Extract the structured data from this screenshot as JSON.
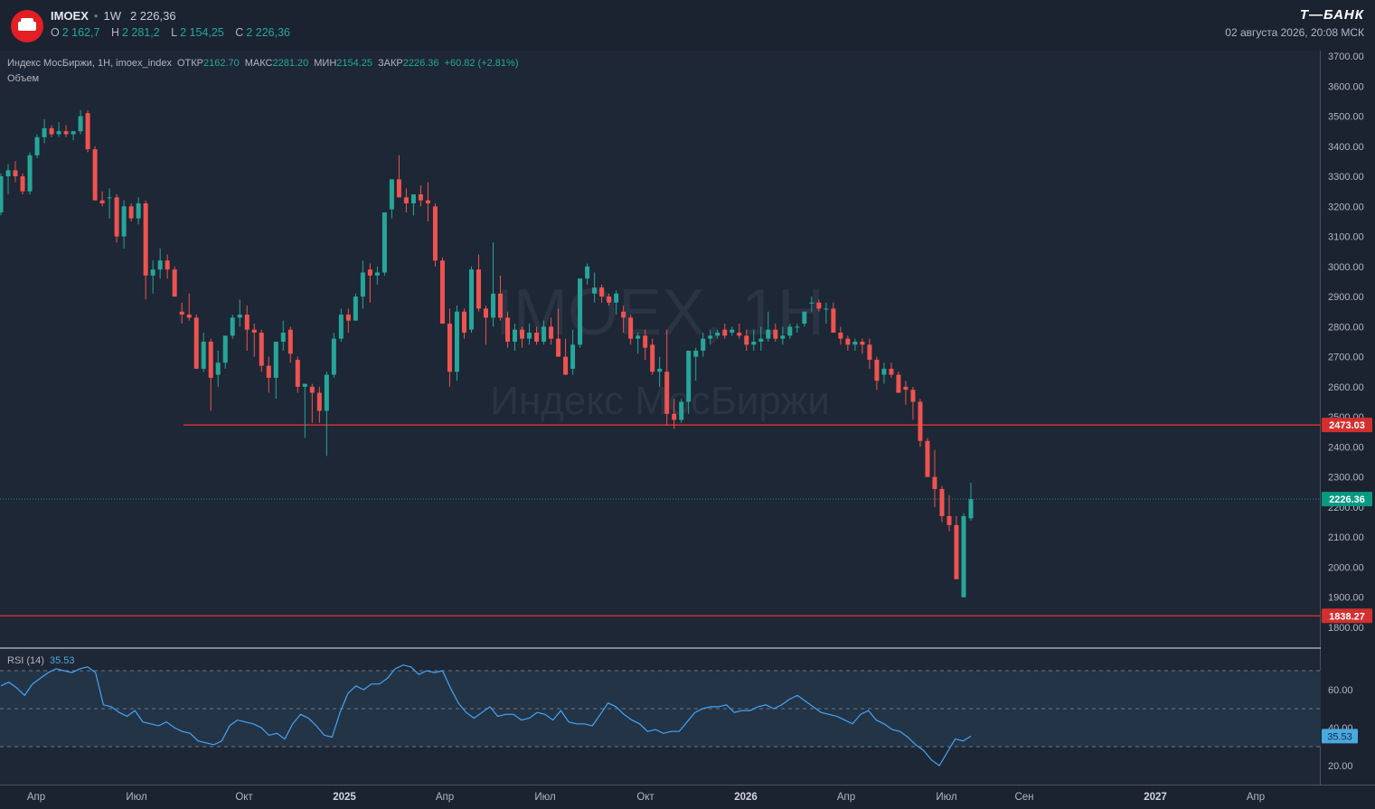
{
  "header": {
    "ticker": "IMOEX",
    "timeframe": "1W",
    "last_price": "2 226,36",
    "ohlc": [
      {
        "key": "O",
        "value": "2 162,7"
      },
      {
        "key": "H",
        "value": "2 281,2"
      },
      {
        "key": "L",
        "value": "2 154,25"
      },
      {
        "key": "C",
        "value": "2 226,36"
      }
    ],
    "brand": "Т—БАНК",
    "datetime": "02 августа 2026, 20:08 МСК"
  },
  "legend": {
    "symbol": "Индекс МосБиржи, 1Н, imoex_index",
    "open_label": "ОТКР",
    "open": "2162.70",
    "high_label": "МАКС",
    "high": "2281.20",
    "low_label": "МИН",
    "low": "2154.25",
    "close_label": "ЗАКР",
    "close": "2226.36",
    "change": "+60.82 (+2.81%)",
    "volume_label": "Объем"
  },
  "watermark": {
    "line1": "IMOEX, 1Н",
    "line2": "Индекс МосБиржи"
  },
  "colors": {
    "up": "#26a69a",
    "down": "#ef5350",
    "level_line": "#d32f2f",
    "current_price": "#089981",
    "rsi_line": "#42a5f5"
  },
  "chart_data": {
    "type": "candlestick",
    "price_axis_ticks": [
      "3700.00",
      "3600.00",
      "3500.00",
      "3400.00",
      "3300.00",
      "3200.00",
      "3100.00",
      "3000.00",
      "2900.00",
      "2800.00",
      "2700.00",
      "2600.00",
      "2500.00",
      "2400.00",
      "2300.00",
      "2200.00",
      "2100.00",
      "2000.00",
      "1900.00",
      "1800.00"
    ],
    "time_axis_labels": [
      "Апр",
      "Июл",
      "Окт",
      "2025",
      "Апр",
      "Июл",
      "Окт",
      "2026",
      "Апр",
      "Июл",
      "Сен",
      "2027",
      "Апр"
    ],
    "levels": [
      {
        "price": 2473.03,
        "label": "2473.03"
      },
      {
        "price": 1838.27,
        "label": "1838.27"
      }
    ],
    "current_price": {
      "value": 2226.36,
      "label": "2226.36"
    },
    "candles_ohlc": [
      [
        3180,
        3310,
        3170,
        3300
      ],
      [
        3300,
        3340,
        3240,
        3320
      ],
      [
        3320,
        3350,
        3280,
        3300
      ],
      [
        3300,
        3310,
        3240,
        3250
      ],
      [
        3250,
        3380,
        3240,
        3370
      ],
      [
        3370,
        3440,
        3360,
        3430
      ],
      [
        3430,
        3490,
        3410,
        3460
      ],
      [
        3460,
        3470,
        3430,
        3440
      ],
      [
        3440,
        3480,
        3430,
        3450
      ],
      [
        3450,
        3470,
        3430,
        3440
      ],
      [
        3440,
        3450,
        3420,
        3450
      ],
      [
        3450,
        3520,
        3440,
        3500
      ],
      [
        3510,
        3520,
        3380,
        3390
      ],
      [
        3390,
        3400,
        3220,
        3220
      ],
      [
        3220,
        3250,
        3200,
        3210
      ],
      [
        3230,
        3260,
        3160,
        3230
      ],
      [
        3230,
        3240,
        3080,
        3100
      ],
      [
        3100,
        3220,
        3060,
        3200
      ],
      [
        3200,
        3210,
        3150,
        3160
      ],
      [
        3160,
        3230,
        3140,
        3210
      ],
      [
        3210,
        3220,
        2890,
        2970
      ],
      [
        2970,
        3020,
        2910,
        2990
      ],
      [
        2990,
        3060,
        2960,
        3020
      ],
      [
        3020,
        3040,
        2960,
        2990
      ],
      [
        2990,
        3000,
        2900,
        2900
      ],
      [
        2850,
        2880,
        2810,
        2840
      ],
      [
        2840,
        2910,
        2820,
        2830
      ],
      [
        2830,
        2840,
        2660,
        2660
      ],
      [
        2660,
        2780,
        2650,
        2750
      ],
      [
        2750,
        2760,
        2520,
        2630
      ],
      [
        2640,
        2720,
        2600,
        2680
      ],
      [
        2680,
        2770,
        2660,
        2770
      ],
      [
        2770,
        2840,
        2760,
        2830
      ],
      [
        2830,
        2890,
        2800,
        2840
      ],
      [
        2840,
        2870,
        2720,
        2790
      ],
      [
        2790,
        2810,
        2700,
        2780
      ],
      [
        2780,
        2790,
        2650,
        2670
      ],
      [
        2670,
        2700,
        2580,
        2630
      ],
      [
        2630,
        2740,
        2560,
        2750
      ],
      [
        2750,
        2820,
        2720,
        2780
      ],
      [
        2790,
        2800,
        2680,
        2710
      ],
      [
        2690,
        2700,
        2580,
        2600
      ],
      [
        2600,
        2610,
        2430,
        2610
      ],
      [
        2600,
        2610,
        2480,
        2580
      ],
      [
        2580,
        2600,
        2480,
        2520
      ],
      [
        2520,
        2650,
        2370,
        2640
      ],
      [
        2640,
        2780,
        2630,
        2760
      ],
      [
        2760,
        2860,
        2750,
        2840
      ],
      [
        2840,
        2860,
        2780,
        2820
      ],
      [
        2820,
        2910,
        2830,
        2900
      ],
      [
        2900,
        3020,
        2860,
        2980
      ],
      [
        2990,
        3010,
        2880,
        2970
      ],
      [
        2970,
        3000,
        2940,
        2980
      ],
      [
        2980,
        3150,
        2970,
        3180
      ],
      [
        3190,
        3290,
        3160,
        3290
      ],
      [
        3290,
        3370,
        3230,
        3230
      ],
      [
        3230,
        3260,
        3180,
        3210
      ],
      [
        3210,
        3240,
        3170,
        3240
      ],
      [
        3240,
        3270,
        3200,
        3220
      ],
      [
        3220,
        3280,
        3150,
        3210
      ],
      [
        3200,
        3210,
        3000,
        3020
      ],
      [
        3020,
        3030,
        2820,
        2810
      ],
      [
        2810,
        2860,
        2600,
        2650
      ],
      [
        2650,
        2870,
        2620,
        2850
      ],
      [
        2850,
        2860,
        2760,
        2780
      ],
      [
        2790,
        3000,
        2780,
        2990
      ],
      [
        2990,
        3040,
        2850,
        2860
      ],
      [
        2860,
        2870,
        2740,
        2830
      ],
      [
        2830,
        3080,
        2800,
        2910
      ],
      [
        2910,
        2970,
        2820,
        2830
      ],
      [
        2830,
        2850,
        2730,
        2750
      ],
      [
        2750,
        2810,
        2720,
        2790
      ],
      [
        2790,
        2800,
        2730,
        2760
      ],
      [
        2760,
        2810,
        2740,
        2780
      ],
      [
        2780,
        2800,
        2740,
        2750
      ],
      [
        2750,
        2820,
        2740,
        2800
      ],
      [
        2800,
        2830,
        2740,
        2760
      ],
      [
        2760,
        2860,
        2720,
        2700
      ],
      [
        2700,
        2760,
        2640,
        2640
      ],
      [
        2660,
        2790,
        2640,
        2740
      ],
      [
        2740,
        2920,
        2730,
        2960
      ],
      [
        2960,
        3010,
        2940,
        3000
      ],
      [
        2910,
        2980,
        2880,
        2930
      ],
      [
        2930,
        2940,
        2880,
        2900
      ],
      [
        2900,
        2910,
        2870,
        2880
      ],
      [
        2880,
        2920,
        2840,
        2910
      ],
      [
        2850,
        2870,
        2780,
        2830
      ],
      [
        2830,
        2840,
        2740,
        2760
      ],
      [
        2760,
        2780,
        2710,
        2770
      ],
      [
        2770,
        2790,
        2690,
        2730
      ],
      [
        2740,
        2760,
        2640,
        2650
      ],
      [
        2650,
        2700,
        2600,
        2660
      ],
      [
        2650,
        2790,
        2470,
        2510
      ],
      [
        2510,
        2560,
        2460,
        2490
      ],
      [
        2490,
        2560,
        2480,
        2550
      ],
      [
        2550,
        2720,
        2510,
        2720
      ],
      [
        2700,
        2730,
        2620,
        2720
      ],
      [
        2720,
        2780,
        2700,
        2760
      ],
      [
        2760,
        2790,
        2740,
        2770
      ],
      [
        2770,
        2790,
        2760,
        2780
      ],
      [
        2790,
        2810,
        2760,
        2770
      ],
      [
        2780,
        2800,
        2770,
        2790
      ],
      [
        2780,
        2810,
        2760,
        2770
      ],
      [
        2770,
        2790,
        2720,
        2740
      ],
      [
        2740,
        2790,
        2720,
        2750
      ],
      [
        2750,
        2800,
        2720,
        2760
      ],
      [
        2760,
        2850,
        2750,
        2790
      ],
      [
        2790,
        2810,
        2750,
        2760
      ],
      [
        2760,
        2800,
        2740,
        2770
      ],
      [
        2770,
        2810,
        2760,
        2800
      ],
      [
        2800,
        2810,
        2780,
        2800
      ],
      [
        2810,
        2850,
        2800,
        2850
      ],
      [
        2880,
        2900,
        2850,
        2880
      ],
      [
        2880,
        2890,
        2850,
        2860
      ],
      [
        2860,
        2880,
        2810,
        2860
      ],
      [
        2860,
        2880,
        2790,
        2780
      ],
      [
        2780,
        2800,
        2740,
        2760
      ],
      [
        2760,
        2770,
        2720,
        2740
      ],
      [
        2740,
        2760,
        2720,
        2750
      ],
      [
        2750,
        2760,
        2710,
        2740
      ],
      [
        2740,
        2760,
        2660,
        2690
      ],
      [
        2690,
        2700,
        2590,
        2620
      ],
      [
        2640,
        2680,
        2610,
        2660
      ],
      [
        2660,
        2680,
        2630,
        2640
      ],
      [
        2640,
        2650,
        2590,
        2580
      ],
      [
        2600,
        2620,
        2540,
        2590
      ],
      [
        2590,
        2600,
        2490,
        2550
      ],
      [
        2550,
        2560,
        2400,
        2420
      ],
      [
        2420,
        2430,
        2300,
        2300
      ],
      [
        2300,
        2390,
        2200,
        2260
      ],
      [
        2260,
        2270,
        2150,
        2170
      ],
      [
        2170,
        2240,
        2120,
        2140
      ],
      [
        2140,
        2170,
        1960,
        1960
      ],
      [
        1900,
        2180,
        1900,
        2170
      ],
      [
        2162.7,
        2281.2,
        2154.25,
        2226.36
      ]
    ],
    "rsi": {
      "label": "RSI (14)",
      "value_label": "35.53",
      "axis_ticks": [
        "60.00",
        "40.00",
        "20.00"
      ],
      "bands": [
        70,
        50,
        30
      ],
      "values": [
        62,
        64,
        61,
        57,
        63,
        66,
        69,
        71,
        70,
        69,
        71,
        72,
        69,
        52,
        51,
        48,
        46,
        49,
        43,
        42,
        41,
        43,
        40,
        38,
        37,
        33,
        32,
        31,
        33,
        41,
        44,
        43,
        42,
        40,
        36,
        37,
        34,
        42,
        47,
        45,
        41,
        36,
        35,
        48,
        58,
        62,
        60,
        63,
        63,
        66,
        71,
        73,
        72,
        68,
        70,
        69,
        70,
        61,
        53,
        48,
        45,
        48,
        51,
        46,
        47,
        47,
        44,
        45,
        48,
        47,
        44,
        49,
        43,
        42,
        42,
        41,
        47,
        53,
        51,
        47,
        44,
        42,
        38,
        39,
        37,
        38,
        38,
        43,
        48,
        50,
        51,
        51,
        52,
        48,
        49,
        49,
        51,
        52,
        50,
        52,
        55,
        57,
        54,
        51,
        48,
        47,
        46,
        44,
        42,
        47,
        49,
        44,
        42,
        39,
        38,
        35,
        31,
        28,
        23,
        20,
        27,
        34,
        33,
        35.53
      ]
    }
  }
}
